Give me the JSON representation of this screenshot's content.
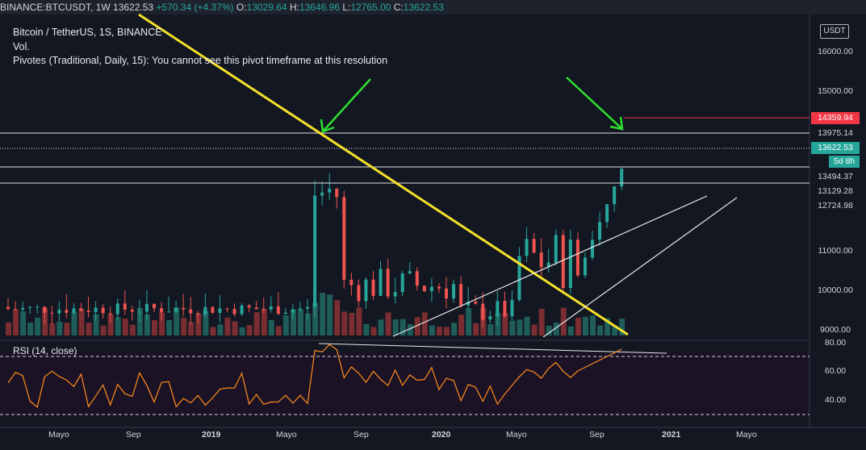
{
  "header": {
    "symbol": "BINANCE:BTCUSDT",
    "interval": "1W",
    "last": "13622.53",
    "change": "+570.34 (+4.37%)",
    "o_label": "O:",
    "o": "13029.64",
    "h_label": "H:",
    "h": "13646.96",
    "l_label": "L:",
    "l": "12765.00",
    "c_label": "C:",
    "c": "13622.53"
  },
  "legend": {
    "title": "Bitcoin / TetherUS, 1S, BINANCE",
    "vol": "Vol.",
    "pivots": "Pivotes (Traditional, Daily, 15): You cannot see this pivot timeframe at this resolution",
    "rsi": "RSI (14, close)"
  },
  "price_axis": {
    "currency_button": "USDT",
    "ticks": [
      "16000.00",
      "15000.00",
      "11000.00",
      "10000.00",
      "9000.00"
    ],
    "tags": {
      "resistance_high": "14359.94",
      "level_13975": "13975.14",
      "last_price": "13622.53",
      "countdown": "5d 8h",
      "level_13494": "13494.37",
      "level_13129": "13129.28",
      "level_12724": "12724.98"
    },
    "colors": {
      "resistance": "#f23645",
      "last": "#26a69a"
    }
  },
  "rsi_axis": {
    "ticks": [
      "80.00",
      "60.00",
      "40.00"
    ]
  },
  "time_axis": {
    "labels": [
      "Mayo",
      "Sep",
      "2019",
      "Mayo",
      "Sep",
      "2020",
      "Mayo",
      "Sep",
      "2021",
      "Mayo"
    ]
  },
  "chart_data": {
    "type": "candlestick",
    "symbol": "BINANCE:BTCUSDT",
    "interval": "1W",
    "ohlc_last": {
      "open": 13029.64,
      "high": 13646.96,
      "low": 12765.0,
      "close": 13622.53
    },
    "horizontal_levels": [
      14359.94,
      13975.14,
      13622.53,
      13494.37,
      13129.28,
      12724.98
    ],
    "price_ylim": [
      8800,
      16500
    ],
    "rsi_ylim": [
      25,
      85
    ],
    "rsi_bands": [
      70,
      30
    ],
    "annotations": [
      "descending yellow trendline",
      "rising white trendlines",
      "green arrows",
      "RSI divergence line"
    ],
    "colors": {
      "up": "#26a69a",
      "down": "#ef5350",
      "trend": "#f5e02a",
      "arrow": "#2fe02f",
      "rsi": "#ff8c1a"
    }
  }
}
